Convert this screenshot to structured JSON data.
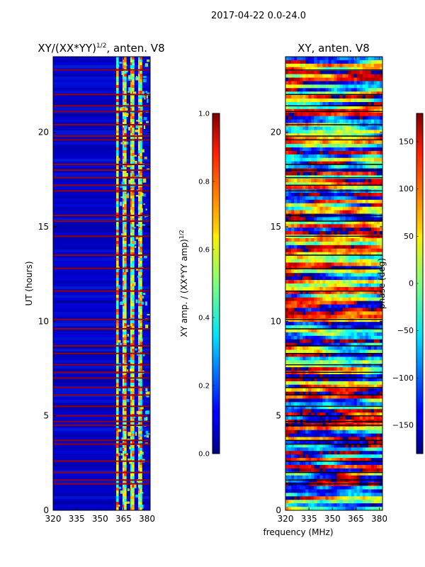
{
  "suptitle": "2017-04-22 0.0-24.0",
  "figure_xlabel": "frequency (MHz)",
  "chart_data": [
    {
      "type": "heatmap",
      "title_main": "XY/(XX*YY)",
      "title_sup": "1/2",
      "title_suffix": ", anten. V8",
      "xlabel": "",
      "ylabel": "UT (hours)",
      "xlim": [
        320,
        382
      ],
      "ylim": [
        0,
        24
      ],
      "xticks": [
        320,
        335,
        350,
        365,
        380
      ],
      "yticks": [
        0,
        5,
        10,
        15,
        20
      ],
      "colorbar": {
        "label_main": "XY amp. / (XX*YY amp)",
        "label_sup": "1/2",
        "range": [
          0.0,
          1.0
        ],
        "ticks": [
          "0.0",
          "0.2",
          "0.4",
          "0.6",
          "0.8",
          "1.0"
        ],
        "tick_values": [
          0,
          0.2,
          0.4,
          0.6,
          0.8,
          1.0
        ]
      },
      "flagged_times_hours": [
        1.4,
        1.6,
        2.0,
        2.6,
        3.5,
        3.7,
        4.5,
        4.7,
        5.0,
        5.5,
        6.1,
        6.5,
        7.0,
        7.3,
        7.7,
        8.3,
        8.7,
        9.6,
        10.1,
        11.6,
        12.8,
        13.5,
        14.5,
        15.3,
        15.6,
        16.9,
        17.2,
        17.6,
        18.0,
        18.3,
        19.6,
        19.8,
        20.4,
        21.1,
        21.4,
        22.0,
        23.3
      ],
      "bright_channels_mhz": [
        361,
        365,
        366,
        370,
        371,
        375,
        376
      ]
    },
    {
      "type": "heatmap",
      "title_main": "XY, anten. V8",
      "xlabel": "frequency (MHz)",
      "ylabel": "",
      "xlim": [
        320,
        382
      ],
      "ylim": [
        0,
        24
      ],
      "xticks": [
        320,
        335,
        350,
        365,
        380
      ],
      "yticks": [
        0,
        5,
        10,
        15,
        20
      ],
      "colorbar": {
        "label": "phase (deg)",
        "range": [
          -180,
          180
        ],
        "ticks": [
          "150",
          "100",
          "50",
          "0",
          "−50",
          "−100",
          "−150"
        ],
        "tick_values": [
          150,
          100,
          50,
          0,
          -50,
          -100,
          -150
        ]
      }
    }
  ]
}
